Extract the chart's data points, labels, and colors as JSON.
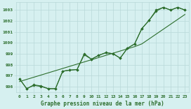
{
  "xlabel": "Graphe pression niveau de la mer (hPa)",
  "ylim": [
    995.5,
    1003.7
  ],
  "xlim": [
    -0.5,
    23.5
  ],
  "yticks": [
    996,
    997,
    998,
    999,
    1000,
    1001,
    1002,
    1003
  ],
  "x_ticks": [
    0,
    1,
    2,
    3,
    4,
    5,
    6,
    7,
    8,
    9,
    10,
    11,
    12,
    13,
    14,
    15,
    16,
    17,
    18,
    19,
    20,
    21,
    22,
    23
  ],
  "x_tick_labels": [
    "0",
    "1",
    "2",
    "3",
    "4",
    "5",
    "6",
    "7",
    "8",
    "9",
    "10",
    "11",
    "12",
    "13",
    "14",
    "15",
    "16",
    "17",
    "18",
    "19",
    "20",
    "21",
    "22",
    "23"
  ],
  "series1": [
    996.7,
    995.8,
    996.1,
    996.0,
    995.8,
    995.8,
    997.4,
    997.5,
    997.55,
    998.9,
    998.5,
    998.85,
    999.1,
    999.0,
    998.6,
    999.5,
    999.9,
    1001.3,
    1002.05,
    1003.0,
    1003.25,
    1003.0,
    1003.25,
    1003.0
  ],
  "series2": [
    996.7,
    995.8,
    996.15,
    996.05,
    995.8,
    995.8,
    997.4,
    997.5,
    997.55,
    999.0,
    998.5,
    998.85,
    999.1,
    999.0,
    998.6,
    999.5,
    999.9,
    1001.3,
    1002.05,
    1002.9,
    1003.25,
    1003.0,
    1003.25,
    1003.0
  ],
  "trend": [
    996.45,
    996.65,
    996.85,
    997.05,
    997.25,
    997.45,
    997.65,
    997.85,
    998.05,
    998.25,
    998.45,
    998.65,
    998.85,
    999.05,
    999.25,
    999.45,
    999.65,
    999.9,
    1000.35,
    1000.8,
    1001.25,
    1001.7,
    1002.15,
    1002.6
  ],
  "line_color": "#2d6e2d",
  "bg_color": "#d6f0f0",
  "grid_color": "#b8d8d8",
  "text_color": "#2d6e2d",
  "marker": "D",
  "marker_size": 1.8,
  "linewidth": 0.8
}
